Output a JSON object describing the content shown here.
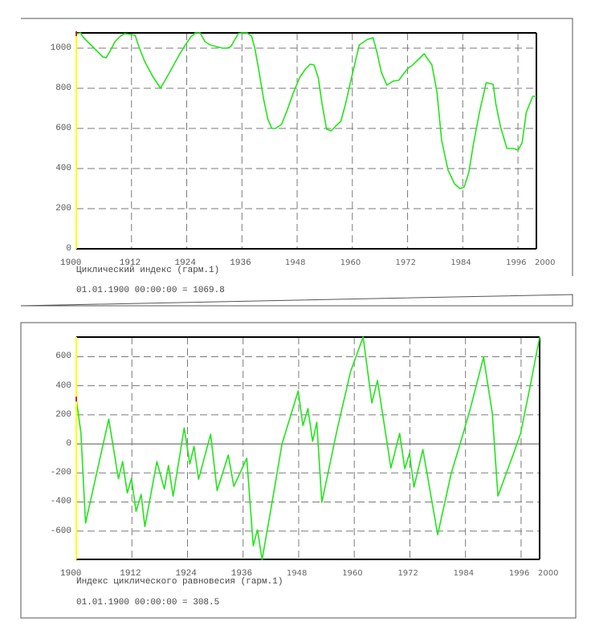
{
  "charts": [
    {
      "id": "top",
      "caption": "Циклический индекс  (гарм.1)",
      "readout": "01.01.1900 00:00:00 =  1069.8",
      "colors": {
        "line": "#22e41a",
        "cursor": "#ffff00",
        "cursor_mark": "#d02020",
        "grid": "#7a7a7a",
        "axis": "#000000",
        "frame": "#555555"
      },
      "chart_data": {
        "type": "line",
        "title": "Циклический индекс (гарм.1)",
        "xlabel": "",
        "ylabel": "",
        "xlim": [
          1900,
          2000
        ],
        "ylim": [
          0,
          1076
        ],
        "xticks": [
          "1900",
          "1912",
          "1924",
          "1936",
          "1948",
          "1960",
          "1972",
          "1984",
          "1996",
          "2000"
        ],
        "yticks": [
          "0",
          "200",
          "400",
          "600",
          "800",
          "1000"
        ],
        "grid": true,
        "legend": null,
        "series": [
          {
            "name": "Циклический индекс",
            "x": [
              1900.2,
              1900.9,
              1901.6,
              1903.0,
              1904.4,
              1905.8,
              1906.5,
              1907.4,
              1908.4,
              1909.6,
              1910.5,
              1911.9,
              1912.8,
              1913.6,
              1914.9,
              1916.6,
              1918.3,
              1920.3,
              1922.4,
              1923.8,
              1924.9,
              1925.9,
              1926.9,
              1928.0,
              1929.1,
              1930.4,
              1931.8,
              1932.7,
              1933.6,
              1934.3,
              1935.2,
              1936.0,
              1937.1,
              1938.1,
              1938.8,
              1939.6,
              1940.7,
              1941.6,
              1942.5,
              1943.3,
              1944.6,
              1945.8,
              1947.2,
              1948.6,
              1949.8,
              1950.8,
              1951.7,
              1952.6,
              1953.4,
              1954.4,
              1955.4,
              1956.4,
              1957.5,
              1958.5,
              1959.9,
              1961.5,
              1963.3,
              1964.5,
              1965.4,
              1966.3,
              1967.5,
              1968.9,
              1970.1,
              1971.0,
              1972.1,
              1973.1,
              1975.6,
              1977.3,
              1978.4,
              1979.4,
              1980.8,
              1982.2,
              1983.4,
              1984.3,
              1985.3,
              1986.3,
              1987.7,
              1989.1,
              1990.6,
              1991.2,
              1992.2,
              1993.6,
              1995.0,
              1996.0,
              1996.9,
              1997.8,
              1999.2,
              2000.0
            ],
            "values": [
              1072,
              1076,
              1052,
              1020,
              988,
              956,
              952,
              988,
              1032,
              1060,
              1072,
              1068,
              1064,
              1008,
              932,
              860,
              800,
              880,
              968,
              1020,
              1056,
              1076,
              1076,
              1032,
              1016,
              1008,
              1000,
              1000,
              1008,
              1036,
              1072,
              1076,
              1076,
              1060,
              1000,
              900,
              748,
              648,
              600,
              600,
              620,
              688,
              780,
              856,
              896,
              920,
              916,
              852,
              724,
              596,
              588,
              612,
              636,
              720,
              860,
              1016,
              1044,
              1052,
              976,
              880,
              816,
              836,
              840,
              868,
              900,
              916,
              972,
              916,
              780,
              540,
              392,
              324,
              300,
              308,
              380,
              520,
              688,
              828,
              820,
              720,
              608,
              500,
              500,
              492,
              528,
              680,
              760,
              760
            ]
          }
        ]
      }
    },
    {
      "id": "bottom",
      "caption": "Индекс циклического равновесия  (гарм.1)",
      "readout": "01.01.1900 00:00:00 =   308.5",
      "colors": {
        "line": "#22e41a",
        "cursor": "#ffff00",
        "cursor_mark": "#d02020",
        "grid": "#7a7a7a",
        "axis": "#000000",
        "frame": "#555555"
      },
      "chart_data": {
        "type": "line",
        "title": "Индекс циклического равновесия (гарм.1)",
        "xlabel": "",
        "ylabel": "",
        "xlim": [
          1900,
          2000
        ],
        "ylim": [
          -795,
          735
        ],
        "xticks": [
          "1900",
          "1912",
          "1924",
          "1936",
          "1948",
          "1960",
          "1972",
          "1984",
          "1996",
          "2000"
        ],
        "yticks": [
          "-600",
          "-400",
          "-200",
          "0",
          "200",
          "400",
          "600"
        ],
        "grid": true,
        "legend": null,
        "series": [
          {
            "name": "Индекс циклического равновесия",
            "x": [
              1900.0,
              1901.0,
              1902.0,
              1907.0,
              1909.1,
              1910.0,
              1911.0,
              1911.9,
              1912.9,
              1914.0,
              1914.8,
              1917.4,
              1919.0,
              1919.9,
              1920.9,
              1923.3,
              1924.5,
              1925.4,
              1926.4,
              1929.0,
              1930.4,
              1932.8,
              1934.0,
              1936.8,
              1938.2,
              1939.1,
              1940.1,
              1942.3,
              1944.4,
              1947.9,
              1948.9,
              1950.0,
              1951.0,
              1951.9,
              1953.0,
              1956.3,
              1959.2,
              1961.9,
              1963.8,
              1965.0,
              1967.9,
              1969.8,
              1970.9,
              1971.9,
              1972.9,
              1974.8,
              1978.0,
              1980.9,
              1983.2,
              1985.0,
              1987.9,
              1989.8,
              1991.0,
              1994.5,
              1995.9,
              1998.0,
              2000.0
            ],
            "values": [
              308,
              75,
              -545,
              170,
              -240,
              -122,
              -337,
              -238,
              -464,
              -348,
              -569,
              -122,
              -310,
              -149,
              -359,
              110,
              -138,
              -17,
              -243,
              66,
              -321,
              -77,
              -293,
              -99,
              -702,
              -591,
              -796,
              -393,
              0,
              365,
              127,
              243,
              17,
              149,
              -403,
              100,
              498,
              735,
              282,
              436,
              -166,
              72,
              -171,
              -66,
              -298,
              -39,
              -625,
              -205,
              39,
              238,
              597,
              210,
              -359,
              -55,
              72,
              404,
              735
            ]
          }
        ]
      }
    }
  ]
}
